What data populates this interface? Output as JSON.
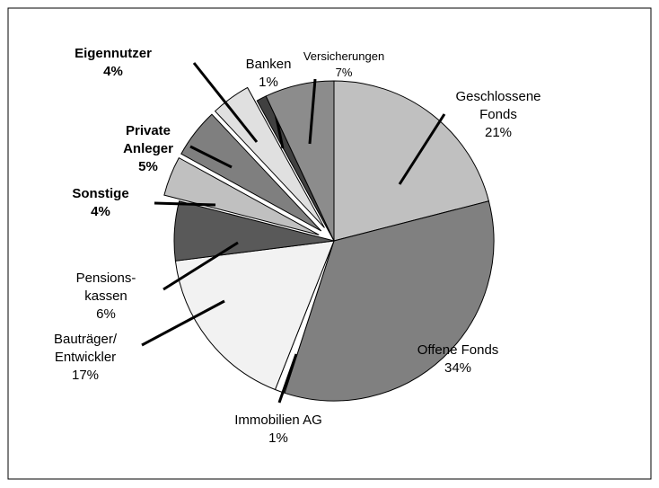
{
  "chart_data": {
    "type": "pie",
    "categories": [
      "Geschlossene\nFonds",
      "Offene Fonds",
      "Immobilien AG",
      "Bauträger/\nEntwickler",
      "Pensions-\nkassen",
      "Sonstige",
      "Private\nAnleger",
      "Eigennutzer",
      "Banken",
      "Versicherungen"
    ],
    "values": [
      21,
      34,
      1,
      17,
      6,
      4,
      5,
      4,
      1,
      7
    ],
    "value_labels": [
      "21%",
      "34%",
      "1%",
      "17%",
      "6%",
      "4%",
      "5%",
      "4%",
      "1%",
      "7%"
    ],
    "colors": [
      "#c0c0c0",
      "#808080",
      "#ffffff",
      "#f2f2f2",
      "#595959",
      "#c0c0c0",
      "#7f7f7f",
      "#e0e0e0",
      "#404040",
      "#8c8c8c"
    ],
    "explode": [
      0,
      0,
      0,
      0,
      0,
      1,
      1,
      1,
      0,
      0
    ]
  }
}
